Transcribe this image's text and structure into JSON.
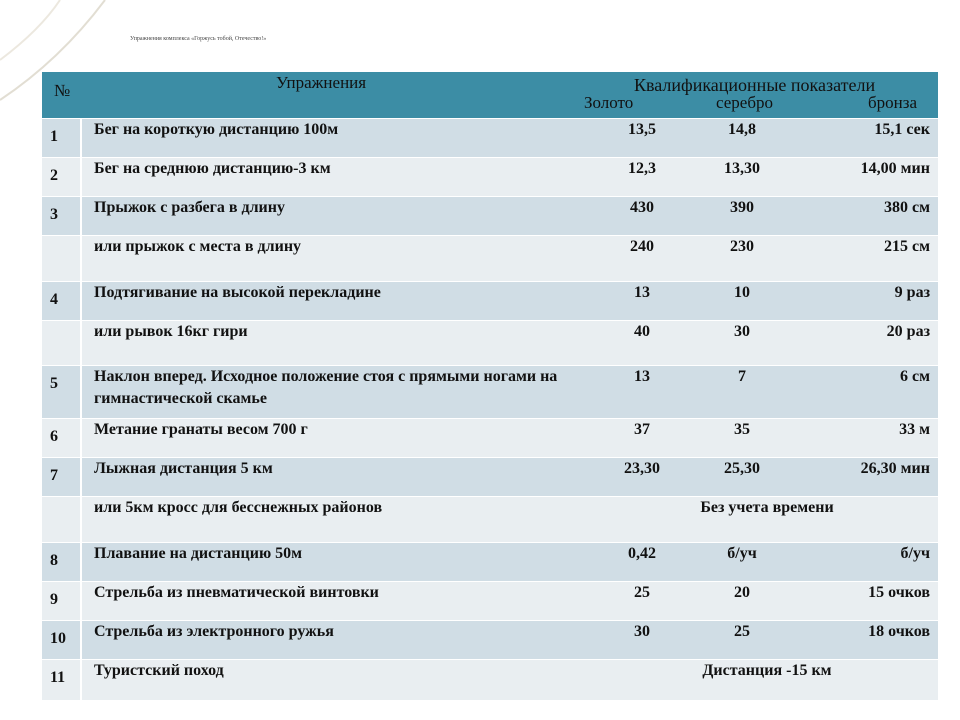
{
  "title": "Упражнения комплекса «Горжусь тобой, Отечество!»",
  "table": {
    "header": {
      "num": "№",
      "exercise": "Упражнения",
      "qualification": "Квалификационные показатели",
      "gold": "Золото",
      "silver": "серебро",
      "bronze": "бронза"
    },
    "rows": [
      {
        "num": "1",
        "exercise": "Бег на короткую дистанцию 100м",
        "values": [
          "13,5",
          "14,8",
          "15,1 сек"
        ]
      },
      {
        "num": "2",
        "exercise": "Бег на среднюю дистанцию-3 км",
        "values": [
          "12,3",
          "13,30",
          "14,00 мин"
        ]
      },
      {
        "num": "3",
        "exercise": "Прыжок с разбега в длину",
        "values": [
          "430",
          "390",
          "380 см"
        ]
      },
      {
        "exercise": "или прыжок с места в длину",
        "values": [
          "240",
          "230",
          "215 см"
        ]
      },
      {
        "num": "4",
        "exercise": "Подтягивание на высокой перекладине",
        "values": [
          "13",
          "10",
          "9 раз"
        ]
      },
      {
        "exercise": "или рывок 16кг гири",
        "values": [
          "40",
          "30",
          "20 раз"
        ]
      },
      {
        "num": "5",
        "exercise": "Наклон вперед.  Исходное положение стоя с прямыми ногами на гимнастической скамье",
        "values": [
          "13",
          "7",
          "6 см"
        ]
      },
      {
        "num": "6",
        "exercise": "Метание гранаты весом 700 г",
        "values": [
          "37",
          "35",
          "33 м"
        ]
      },
      {
        "num": "7",
        "exercise": "Лыжная дистанция 5 км",
        "values": [
          "23,30",
          "25,30",
          "26,30 мин"
        ]
      },
      {
        "exercise": "или 5км кросс для бесснежных  районов",
        "span": "Без учета времени"
      },
      {
        "num": "8",
        "exercise": "Плавание на дистанцию  50м",
        "values": [
          "0,42",
          "б/уч",
          "б/уч"
        ]
      },
      {
        "num": "9",
        "exercise": "Стрельба из пневматической винтовки",
        "values": [
          "25",
          "20",
          "15 очков"
        ]
      },
      {
        "num": "10",
        "exercise": "Стрельба из электронного ружья",
        "values": [
          "30",
          "25",
          "18 очков"
        ]
      },
      {
        "num": "11",
        "exercise": "Туристский поход",
        "span": "Дистанция -15 км"
      }
    ]
  }
}
